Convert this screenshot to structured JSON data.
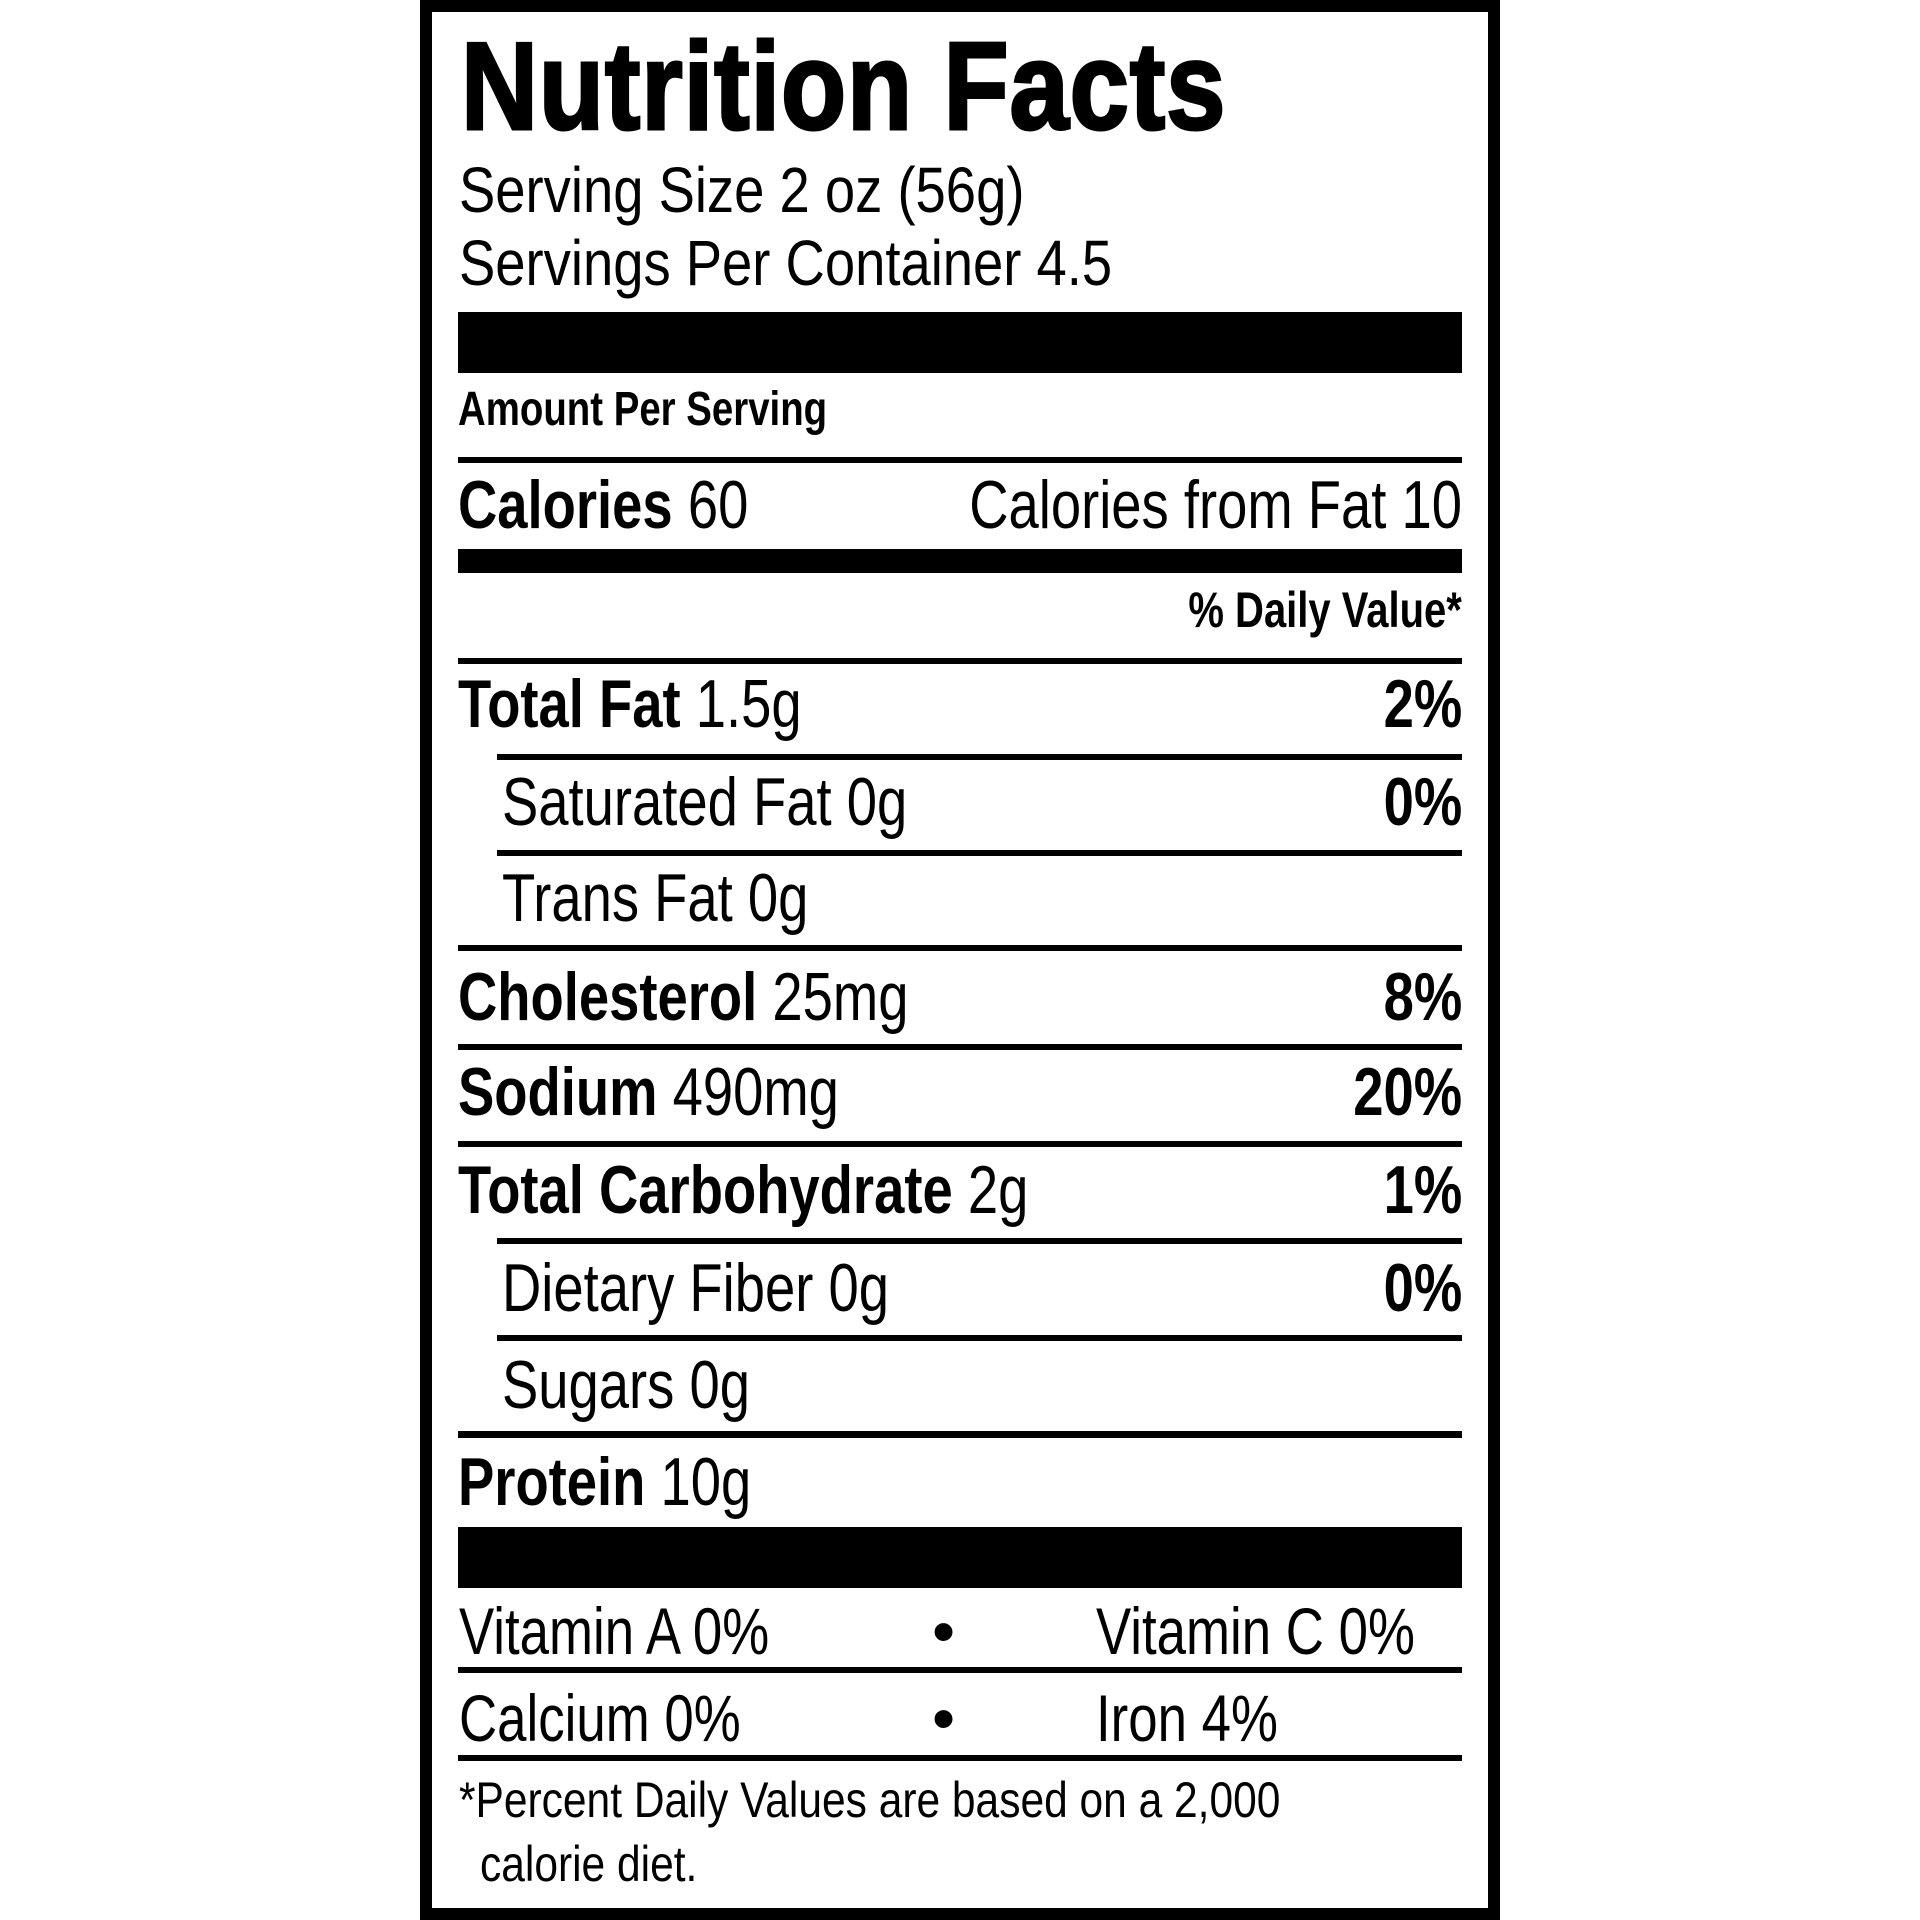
{
  "title": "Nutrition Facts",
  "serving_size": "Serving Size 2 oz (56g)",
  "servings_per_container": "Servings Per Container 4.5",
  "amount_per_serving": "Amount Per Serving",
  "calories": {
    "label": "Calories",
    "value": "60",
    "from_fat": "Calories from Fat 10"
  },
  "daily_value_header": "% Daily Value*",
  "nutrients": [
    {
      "label": "Total Fat",
      "amount": "1.5g",
      "dv": "2%"
    },
    {
      "label": "Saturated Fat",
      "amount": "0g",
      "dv": "0%"
    },
    {
      "label": "Trans Fat",
      "amount": "0g",
      "dv": ""
    },
    {
      "label": "Cholesterol",
      "amount": "25mg",
      "dv": "8%"
    },
    {
      "label": "Sodium",
      "amount": "490mg",
      "dv": "20%"
    },
    {
      "label": "Total Carbohydrate",
      "amount": "2g",
      "dv": "1%"
    },
    {
      "label": "Dietary Fiber",
      "amount": "0g",
      "dv": "0%"
    },
    {
      "label": "Sugars",
      "amount": "0g",
      "dv": ""
    },
    {
      "label": "Protein",
      "amount": "10g",
      "dv": ""
    }
  ],
  "vitamins": [
    {
      "left": "Vitamin A 0%",
      "right": "Vitamin C 0%"
    },
    {
      "left": "Calcium 0%",
      "right": "Iron 4%"
    }
  ],
  "bullet": "•",
  "footnote": [
    "*Percent Daily Values are based on a 2,000",
    "calorie diet."
  ]
}
